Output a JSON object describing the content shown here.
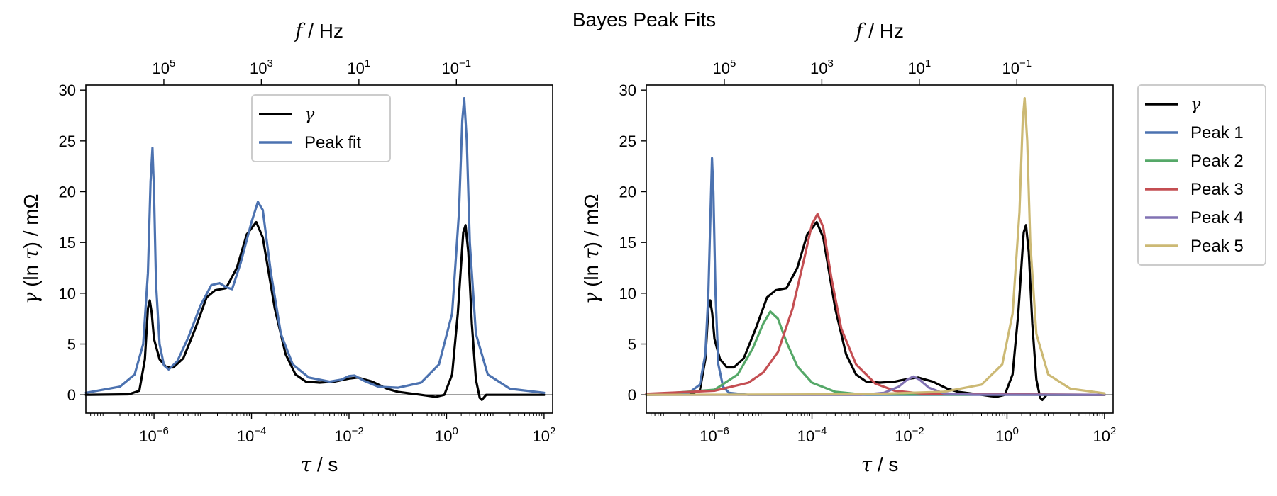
{
  "figure": {
    "title": "Bayes Peak Fits"
  },
  "chart_data": [
    {
      "type": "line",
      "panel": "left",
      "xscale": "log",
      "xlim": [
        4e-08,
        150
      ],
      "ylim": [
        -1.8,
        30.5
      ],
      "xlabel": {
        "sym": "τ",
        "unit": " / s"
      },
      "ylabel": {
        "sym": "γ",
        "mid": " (ln ",
        "sym2": "τ",
        "unit": ") / mΩ"
      },
      "top_axis_label": {
        "sym": "f",
        "unit": " / Hz"
      },
      "y_ticks": [
        {
          "v": 0,
          "label": "0"
        },
        {
          "v": 5,
          "label": "5"
        },
        {
          "v": 10,
          "label": "10"
        },
        {
          "v": 15,
          "label": "15"
        },
        {
          "v": 20,
          "label": "20"
        },
        {
          "v": 25,
          "label": "25"
        },
        {
          "v": 30,
          "label": "30"
        }
      ],
      "x_ticks": [
        {
          "v": 1e-06,
          "base": "10",
          "exp": "−6"
        },
        {
          "v": 0.0001,
          "base": "10",
          "exp": "−4"
        },
        {
          "v": 0.01,
          "base": "10",
          "exp": "−2"
        },
        {
          "v": 1,
          "base": "10",
          "exp": "0"
        },
        {
          "v": 100,
          "base": "10",
          "exp": "2"
        }
      ],
      "top_ticks": [
        {
          "f": 100000.0,
          "base": "10",
          "exp": "5"
        },
        {
          "f": 1000.0,
          "base": "10",
          "exp": "3"
        },
        {
          "f": 10,
          "base": "10",
          "exp": "1"
        },
        {
          "f": 0.1,
          "base": "10",
          "exp": "−1"
        }
      ],
      "zero_line": true,
      "legend": {
        "position": "upper-center",
        "entries": [
          {
            "series": 0,
            "sym": "γ"
          },
          {
            "series": 1,
            "text": "Peak fit"
          }
        ]
      },
      "series": [
        {
          "color": "#000000",
          "width": 3.2,
          "points": [
            [
              4e-08,
              0
            ],
            [
              3e-07,
              0.05
            ],
            [
              5e-07,
              0.4
            ],
            [
              6.5e-07,
              3.5
            ],
            [
              7.5e-07,
              8.5
            ],
            [
              8.2e-07,
              9.3
            ],
            [
              9e-07,
              8
            ],
            [
              1e-06,
              5.5
            ],
            [
              1.3e-06,
              3.5
            ],
            [
              1.8e-06,
              2.7
            ],
            [
              2.5e-06,
              2.7
            ],
            [
              4e-06,
              3.6
            ],
            [
              7e-06,
              6.5
            ],
            [
              1.2e-05,
              9.6
            ],
            [
              1.8e-05,
              10.3
            ],
            [
              3e-05,
              10.5
            ],
            [
              5e-05,
              12.5
            ],
            [
              8e-05,
              15.8
            ],
            [
              0.000125,
              17
            ],
            [
              0.00017,
              15.5
            ],
            [
              0.0003,
              8.5
            ],
            [
              0.0005,
              4
            ],
            [
              0.0008,
              2
            ],
            [
              0.0013,
              1.3
            ],
            [
              0.0025,
              1.2
            ],
            [
              0.005,
              1.3
            ],
            [
              0.01,
              1.6
            ],
            [
              0.015,
              1.7
            ],
            [
              0.03,
              1.3
            ],
            [
              0.06,
              0.6
            ],
            [
              0.1,
              0.3
            ],
            [
              0.3,
              0.0
            ],
            [
              0.6,
              -0.2
            ],
            [
              0.9,
              0
            ],
            [
              1.3,
              2
            ],
            [
              1.7,
              8
            ],
            [
              2.2,
              16
            ],
            [
              2.45,
              16.7
            ],
            [
              2.8,
              14
            ],
            [
              3.3,
              7
            ],
            [
              4,
              1.5
            ],
            [
              4.8,
              -0.3
            ],
            [
              5.3,
              -0.5
            ],
            [
              6.5,
              0
            ],
            [
              10,
              0
            ],
            [
              100,
              0
            ]
          ]
        },
        {
          "color": "#4c72b0",
          "width": 3.2,
          "points": [
            [
              4e-08,
              0.2
            ],
            [
              2e-07,
              0.8
            ],
            [
              4e-07,
              2
            ],
            [
              6e-07,
              5
            ],
            [
              7.5e-07,
              12
            ],
            [
              8.5e-07,
              21
            ],
            [
              9.3e-07,
              24.3
            ],
            [
              1e-06,
              20
            ],
            [
              1.1e-06,
              11
            ],
            [
              1.3e-06,
              5
            ],
            [
              1.6e-06,
              2.9
            ],
            [
              2e-06,
              2.5
            ],
            [
              3e-06,
              3.3
            ],
            [
              5e-06,
              5.6
            ],
            [
              9e-06,
              8.8
            ],
            [
              1.5e-05,
              10.8
            ],
            [
              2.2e-05,
              11
            ],
            [
              3e-05,
              10.6
            ],
            [
              4e-05,
              10.4
            ],
            [
              6e-05,
              13
            ],
            [
              0.0001,
              17
            ],
            [
              0.000135,
              19
            ],
            [
              0.00017,
              18.2
            ],
            [
              0.00025,
              12
            ],
            [
              0.0004,
              6
            ],
            [
              0.0007,
              3
            ],
            [
              0.0015,
              1.7
            ],
            [
              0.004,
              1.3
            ],
            [
              0.007,
              1.5
            ],
            [
              0.01,
              1.85
            ],
            [
              0.013,
              1.9
            ],
            [
              0.02,
              1.4
            ],
            [
              0.04,
              0.8
            ],
            [
              0.1,
              0.7
            ],
            [
              0.3,
              1.2
            ],
            [
              0.7,
              3
            ],
            [
              1.3,
              8
            ],
            [
              1.8,
              18
            ],
            [
              2.1,
              27
            ],
            [
              2.3,
              29.2
            ],
            [
              2.6,
              25
            ],
            [
              3,
              15
            ],
            [
              4,
              6
            ],
            [
              7,
              2
            ],
            [
              20,
              0.6
            ],
            [
              100,
              0.2
            ]
          ]
        }
      ]
    },
    {
      "type": "line",
      "panel": "right",
      "xscale": "log",
      "xlim": [
        4e-08,
        150
      ],
      "ylim": [
        -1.8,
        30.5
      ],
      "xlabel": {
        "sym": "τ",
        "unit": " / s"
      },
      "ylabel": {
        "sym": "γ",
        "mid": " (ln ",
        "sym2": "τ",
        "unit": ") / mΩ"
      },
      "top_axis_label": {
        "sym": "f",
        "unit": " / Hz"
      },
      "y_ticks": [
        {
          "v": 0,
          "label": "0"
        },
        {
          "v": 5,
          "label": "5"
        },
        {
          "v": 10,
          "label": "10"
        },
        {
          "v": 15,
          "label": "15"
        },
        {
          "v": 20,
          "label": "20"
        },
        {
          "v": 25,
          "label": "25"
        },
        {
          "v": 30,
          "label": "30"
        }
      ],
      "x_ticks": [
        {
          "v": 1e-06,
          "base": "10",
          "exp": "−6"
        },
        {
          "v": 0.0001,
          "base": "10",
          "exp": "−4"
        },
        {
          "v": 0.01,
          "base": "10",
          "exp": "−2"
        },
        {
          "v": 1,
          "base": "10",
          "exp": "0"
        },
        {
          "v": 100,
          "base": "10",
          "exp": "2"
        }
      ],
      "top_ticks": [
        {
          "f": 100000.0,
          "base": "10",
          "exp": "5"
        },
        {
          "f": 1000.0,
          "base": "10",
          "exp": "3"
        },
        {
          "f": 10,
          "base": "10",
          "exp": "1"
        },
        {
          "f": 0.1,
          "base": "10",
          "exp": "−1"
        }
      ],
      "zero_line": true,
      "legend": {
        "position": "outside-right",
        "entries": [
          {
            "series": 0,
            "sym": "γ"
          },
          {
            "series": 1,
            "text": "Peak 1"
          },
          {
            "series": 2,
            "text": "Peak 2"
          },
          {
            "series": 3,
            "text": "Peak 3"
          },
          {
            "series": 4,
            "text": "Peak 4"
          },
          {
            "series": 5,
            "text": "Peak 5"
          }
        ]
      },
      "series": [
        {
          "color": "#000000",
          "width": 3.2,
          "points": [
            [
              4e-08,
              0
            ],
            [
              3e-07,
              0.05
            ],
            [
              5e-07,
              0.4
            ],
            [
              6.5e-07,
              3.5
            ],
            [
              7.5e-07,
              8.5
            ],
            [
              8.2e-07,
              9.3
            ],
            [
              9e-07,
              8
            ],
            [
              1e-06,
              5.5
            ],
            [
              1.3e-06,
              3.5
            ],
            [
              1.8e-06,
              2.7
            ],
            [
              2.5e-06,
              2.7
            ],
            [
              4e-06,
              3.6
            ],
            [
              7e-06,
              6.5
            ],
            [
              1.2e-05,
              9.6
            ],
            [
              1.8e-05,
              10.3
            ],
            [
              3e-05,
              10.5
            ],
            [
              5e-05,
              12.5
            ],
            [
              8e-05,
              15.8
            ],
            [
              0.000125,
              17
            ],
            [
              0.00017,
              15.5
            ],
            [
              0.0003,
              8.5
            ],
            [
              0.0005,
              4
            ],
            [
              0.0008,
              2
            ],
            [
              0.0013,
              1.3
            ],
            [
              0.0025,
              1.2
            ],
            [
              0.005,
              1.3
            ],
            [
              0.01,
              1.6
            ],
            [
              0.015,
              1.7
            ],
            [
              0.03,
              1.3
            ],
            [
              0.06,
              0.6
            ],
            [
              0.1,
              0.3
            ],
            [
              0.3,
              0.0
            ],
            [
              0.6,
              -0.2
            ],
            [
              0.9,
              0
            ],
            [
              1.3,
              2
            ],
            [
              1.7,
              8
            ],
            [
              2.2,
              16
            ],
            [
              2.45,
              16.7
            ],
            [
              2.8,
              14
            ],
            [
              3.3,
              7
            ],
            [
              4,
              1.5
            ],
            [
              4.8,
              -0.3
            ],
            [
              5.3,
              -0.5
            ],
            [
              6.5,
              0
            ],
            [
              10,
              0
            ],
            [
              100,
              0
            ]
          ]
        },
        {
          "color": "#4c72b0",
          "width": 3.2,
          "points": [
            [
              4e-08,
              0
            ],
            [
              3e-07,
              0.2
            ],
            [
              5e-07,
              1
            ],
            [
              6.5e-07,
              4
            ],
            [
              7.5e-07,
              10
            ],
            [
              8.3e-07,
              18
            ],
            [
              8.9e-07,
              23.3
            ],
            [
              9.5e-07,
              20
            ],
            [
              1.05e-06,
              10
            ],
            [
              1.2e-06,
              3
            ],
            [
              1.5e-06,
              0.8
            ],
            [
              2e-06,
              0.2
            ],
            [
              5e-06,
              0
            ],
            [
              100,
              0
            ]
          ]
        },
        {
          "color": "#55a868",
          "width": 3.2,
          "points": [
            [
              4e-08,
              0
            ],
            [
              1e-06,
              0.5
            ],
            [
              3e-06,
              2
            ],
            [
              6e-06,
              4.5
            ],
            [
              1e-05,
              7
            ],
            [
              1.4e-05,
              8.2
            ],
            [
              2e-05,
              7.5
            ],
            [
              3e-05,
              5.2
            ],
            [
              5e-05,
              2.8
            ],
            [
              0.0001,
              1.2
            ],
            [
              0.0003,
              0.3
            ],
            [
              0.001,
              0.05
            ],
            [
              100,
              0
            ]
          ]
        },
        {
          "color": "#c44e52",
          "width": 3.2,
          "points": [
            [
              4e-08,
              0.1
            ],
            [
              1e-06,
              0.4
            ],
            [
              5e-06,
              1.2
            ],
            [
              1e-05,
              2.2
            ],
            [
              2e-05,
              4.2
            ],
            [
              4e-05,
              8.5
            ],
            [
              7e-05,
              13.5
            ],
            [
              0.0001,
              16.8
            ],
            [
              0.00013,
              17.8
            ],
            [
              0.00017,
              16.5
            ],
            [
              0.00025,
              11.5
            ],
            [
              0.0004,
              6.5
            ],
            [
              0.0008,
              3
            ],
            [
              0.002,
              1.1
            ],
            [
              0.005,
              0.4
            ],
            [
              0.02,
              0.1
            ],
            [
              100,
              0
            ]
          ]
        },
        {
          "color": "#8172b3",
          "width": 3.2,
          "points": [
            [
              4e-08,
              0
            ],
            [
              0.001,
              0
            ],
            [
              0.003,
              0.2
            ],
            [
              0.006,
              0.8
            ],
            [
              0.009,
              1.5
            ],
            [
              0.012,
              1.8
            ],
            [
              0.016,
              1.5
            ],
            [
              0.025,
              0.7
            ],
            [
              0.05,
              0.15
            ],
            [
              0.2,
              0.02
            ],
            [
              100,
              0
            ]
          ]
        },
        {
          "color": "#ccb974",
          "width": 3.2,
          "points": [
            [
              4e-08,
              0
            ],
            [
              0.001,
              0.05
            ],
            [
              0.05,
              0.3
            ],
            [
              0.3,
              1
            ],
            [
              0.8,
              3
            ],
            [
              1.3,
              8
            ],
            [
              1.8,
              18
            ],
            [
              2.1,
              27
            ],
            [
              2.3,
              29.2
            ],
            [
              2.6,
              25
            ],
            [
              3,
              15
            ],
            [
              4,
              6
            ],
            [
              7,
              2
            ],
            [
              20,
              0.6
            ],
            [
              100,
              0.15
            ]
          ]
        }
      ]
    }
  ]
}
